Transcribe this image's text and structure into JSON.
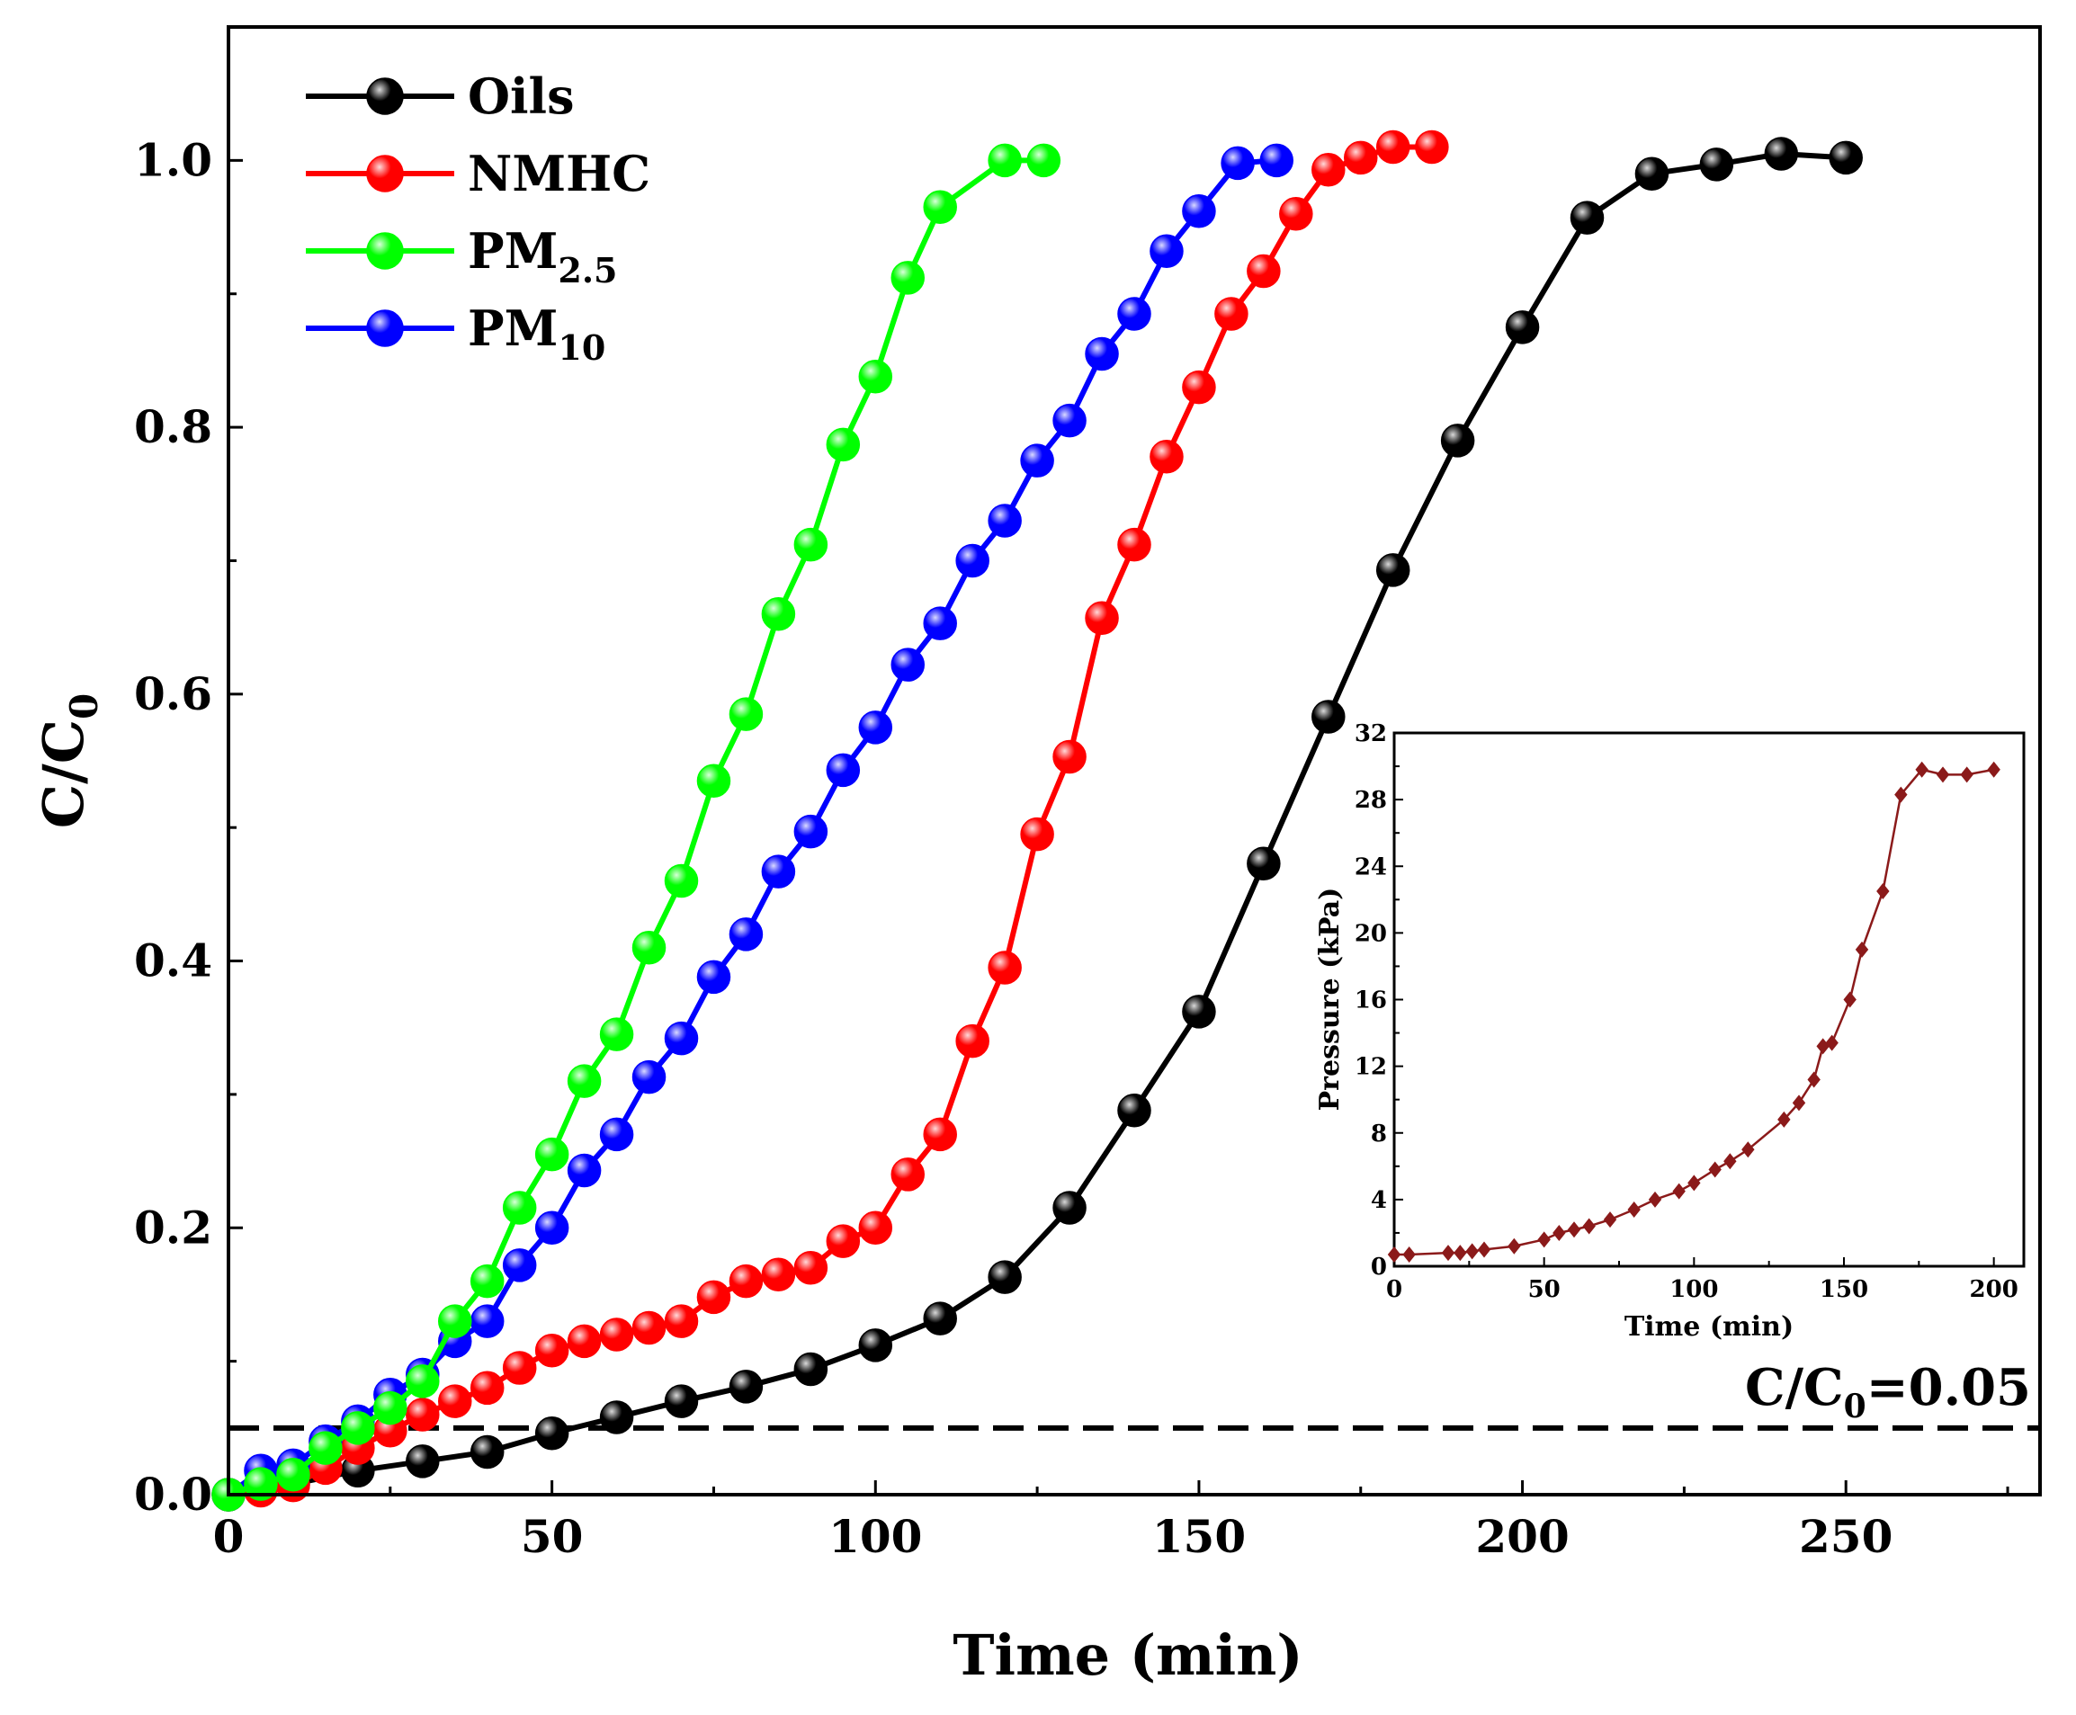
{
  "chart_data": [
    {
      "type": "line",
      "xlabel": "Time (min)",
      "ylabel_main": "C/C",
      "ylabel_sub": "0",
      "xlim": [
        0,
        280
      ],
      "ylim": [
        0,
        1.1
      ],
      "xticks": [
        0,
        50,
        100,
        150,
        200,
        250
      ],
      "yticks": [
        0.0,
        0.2,
        0.4,
        0.6,
        0.8,
        1.0
      ],
      "ytick_labels": [
        "0.0",
        "0.2",
        "0.4",
        "0.6",
        "0.8",
        "1.0"
      ],
      "legend_position": "top-left",
      "grid": false,
      "annotation": {
        "main": "C/C",
        "sub": "0",
        "suffix": "=0.05",
        "y": 0.05
      },
      "series": [
        {
          "name": "Oils",
          "name_main": "Oils",
          "name_sub": "",
          "color": "#000000",
          "x": [
            0,
            10,
            20,
            30,
            40,
            50,
            60,
            70,
            80,
            90,
            100,
            110,
            120,
            130,
            140,
            150,
            160,
            170,
            180,
            190,
            200,
            210,
            220,
            230,
            240,
            250
          ],
          "y": [
            0.0,
            0.008,
            0.018,
            0.025,
            0.032,
            0.046,
            0.058,
            0.07,
            0.081,
            0.094,
            0.112,
            0.132,
            0.163,
            0.215,
            0.288,
            0.362,
            0.473,
            0.583,
            0.693,
            0.79,
            0.875,
            0.957,
            0.99,
            0.997,
            1.005,
            1.002
          ]
        },
        {
          "name": "NMHC",
          "name_main": "NMHC",
          "name_sub": "",
          "color": "#ff0000",
          "x": [
            0,
            5,
            10,
            15,
            20,
            25,
            30,
            35,
            40,
            45,
            50,
            55,
            60,
            65,
            70,
            75,
            80,
            85,
            90,
            95,
            100,
            105,
            110,
            115,
            120,
            125,
            130,
            135,
            140,
            145,
            150,
            155,
            160,
            165,
            170,
            175,
            180,
            186
          ],
          "y": [
            0.0,
            0.003,
            0.007,
            0.02,
            0.035,
            0.048,
            0.06,
            0.07,
            0.08,
            0.095,
            0.108,
            0.115,
            0.12,
            0.125,
            0.13,
            0.148,
            0.16,
            0.165,
            0.17,
            0.19,
            0.2,
            0.24,
            0.27,
            0.34,
            0.395,
            0.495,
            0.553,
            0.657,
            0.712,
            0.778,
            0.83,
            0.885,
            0.917,
            0.96,
            0.993,
            1.002,
            1.01,
            1.01
          ]
        },
        {
          "name": "PM2.5",
          "name_main": "PM",
          "name_sub": "2.5",
          "color": "#00ff00",
          "x": [
            0,
            5,
            10,
            15,
            20,
            25,
            30,
            35,
            40,
            45,
            50,
            55,
            60,
            65,
            70,
            75,
            80,
            85,
            90,
            95,
            100,
            105,
            110,
            120,
            126
          ],
          "y": [
            0.0,
            0.008,
            0.015,
            0.035,
            0.05,
            0.065,
            0.085,
            0.13,
            0.16,
            0.215,
            0.255,
            0.31,
            0.345,
            0.41,
            0.46,
            0.535,
            0.585,
            0.66,
            0.712,
            0.787,
            0.838,
            0.912,
            0.965,
            1.0,
            1.0
          ]
        },
        {
          "name": "PM10",
          "name_main": "PM",
          "name_sub": "10",
          "color": "#0000ff",
          "x": [
            0,
            5,
            10,
            15,
            20,
            25,
            30,
            35,
            40,
            45,
            50,
            55,
            60,
            65,
            70,
            75,
            80,
            85,
            90,
            95,
            100,
            105,
            110,
            115,
            120,
            125,
            130,
            135,
            140,
            145,
            150,
            156,
            162
          ],
          "y": [
            0.0,
            0.018,
            0.022,
            0.04,
            0.055,
            0.075,
            0.09,
            0.115,
            0.13,
            0.172,
            0.2,
            0.243,
            0.27,
            0.313,
            0.342,
            0.388,
            0.42,
            0.467,
            0.497,
            0.543,
            0.575,
            0.622,
            0.653,
            0.7,
            0.73,
            0.775,
            0.805,
            0.855,
            0.885,
            0.932,
            0.962,
            0.998,
            1.0
          ]
        }
      ]
    },
    {
      "type": "line",
      "xlabel": "Time (min)",
      "ylabel": "Pressure (kPa)",
      "xlim": [
        0,
        210
      ],
      "ylim": [
        0,
        32
      ],
      "xticks": [
        0,
        50,
        100,
        150,
        200
      ],
      "yticks": [
        0,
        4,
        8,
        12,
        16,
        20,
        24,
        28,
        32
      ],
      "grid": false,
      "series": [
        {
          "name": "Pressure",
          "color": "#8b1a1a",
          "x": [
            0,
            5,
            18,
            22,
            26,
            30,
            40,
            50,
            55,
            60,
            65,
            72,
            80,
            87,
            95,
            100,
            107,
            112,
            118,
            130,
            135,
            140,
            143,
            146,
            152,
            156,
            163,
            169,
            176,
            183,
            191,
            200
          ],
          "y": [
            0.7,
            0.7,
            0.8,
            0.8,
            0.9,
            1.0,
            1.2,
            1.6,
            2.0,
            2.2,
            2.4,
            2.8,
            3.4,
            4.0,
            4.5,
            5.0,
            5.8,
            6.3,
            7.0,
            8.8,
            9.8,
            11.2,
            13.2,
            13.4,
            16.0,
            19.0,
            22.5,
            28.3,
            29.8,
            29.5,
            29.5,
            29.8
          ]
        }
      ]
    }
  ]
}
